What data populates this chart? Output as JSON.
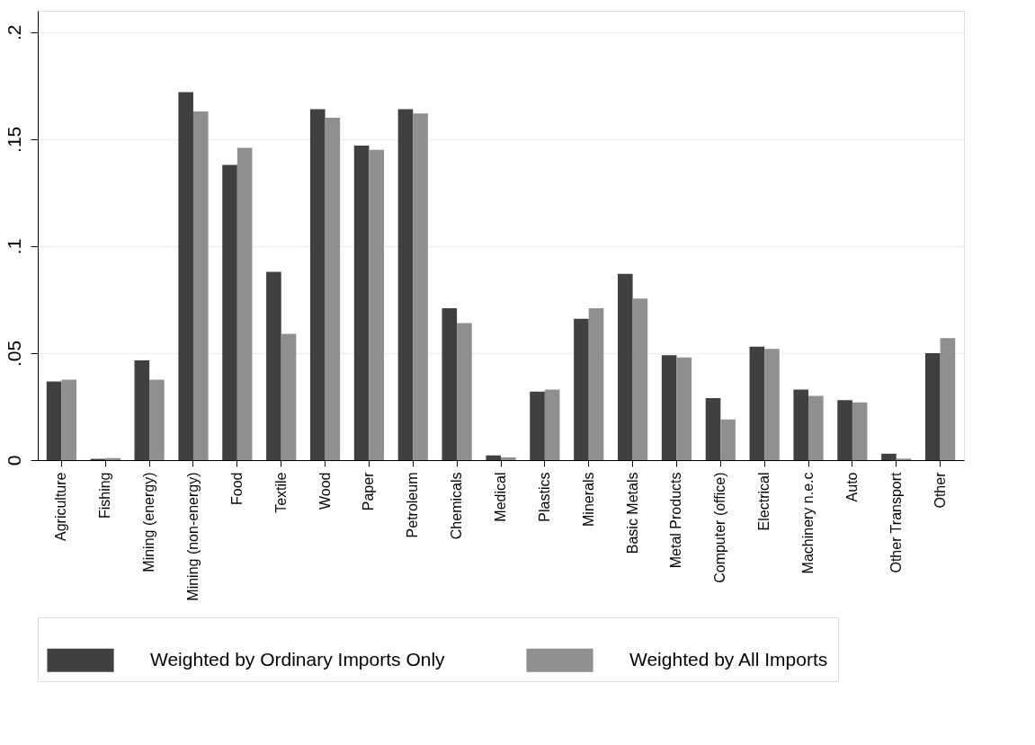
{
  "chart_data": {
    "type": "bar",
    "categories": [
      "Agriculture",
      "Fishing",
      "Mining (energy)",
      "Mining (non-energy)",
      "Food",
      "Textile",
      "Wood",
      "Paper",
      "Petroleum",
      "Chemicals",
      "Medical",
      "Plastics",
      "Minerals",
      "Basic Metals",
      "Metal Products",
      "Computer (office)",
      "Electrical",
      "Machinery n.e.c",
      "Auto",
      "Other Transport",
      "Other"
    ],
    "series": [
      {
        "name": "Weighted by Ordinary Imports Only",
        "color": "#404040",
        "values": [
          0.0368,
          0.0006,
          0.0466,
          0.172,
          0.138,
          0.088,
          0.164,
          0.147,
          0.164,
          0.071,
          0.0022,
          0.032,
          0.066,
          0.087,
          0.049,
          0.029,
          0.053,
          0.033,
          0.028,
          0.003,
          0.05
        ]
      },
      {
        "name": "Weighted by All Imports",
        "color": "#8f8f8f",
        "values": [
          0.0376,
          0.0009,
          0.0376,
          0.163,
          0.146,
          0.059,
          0.16,
          0.145,
          0.162,
          0.064,
          0.0013,
          0.033,
          0.071,
          0.0755,
          0.048,
          0.019,
          0.052,
          0.03,
          0.027,
          0.0007,
          0.057
        ]
      }
    ],
    "ylim": [
      0,
      0.21
    ],
    "yticks": [
      0,
      {
        "value": 0.05,
        "label": ".05"
      },
      {
        "value": 0.1,
        "label": ".1"
      },
      {
        "value": 0.15,
        "label": ".15"
      },
      {
        "value": 0.2,
        "label": ".2"
      }
    ],
    "grid": "y",
    "legend": "bottom"
  }
}
